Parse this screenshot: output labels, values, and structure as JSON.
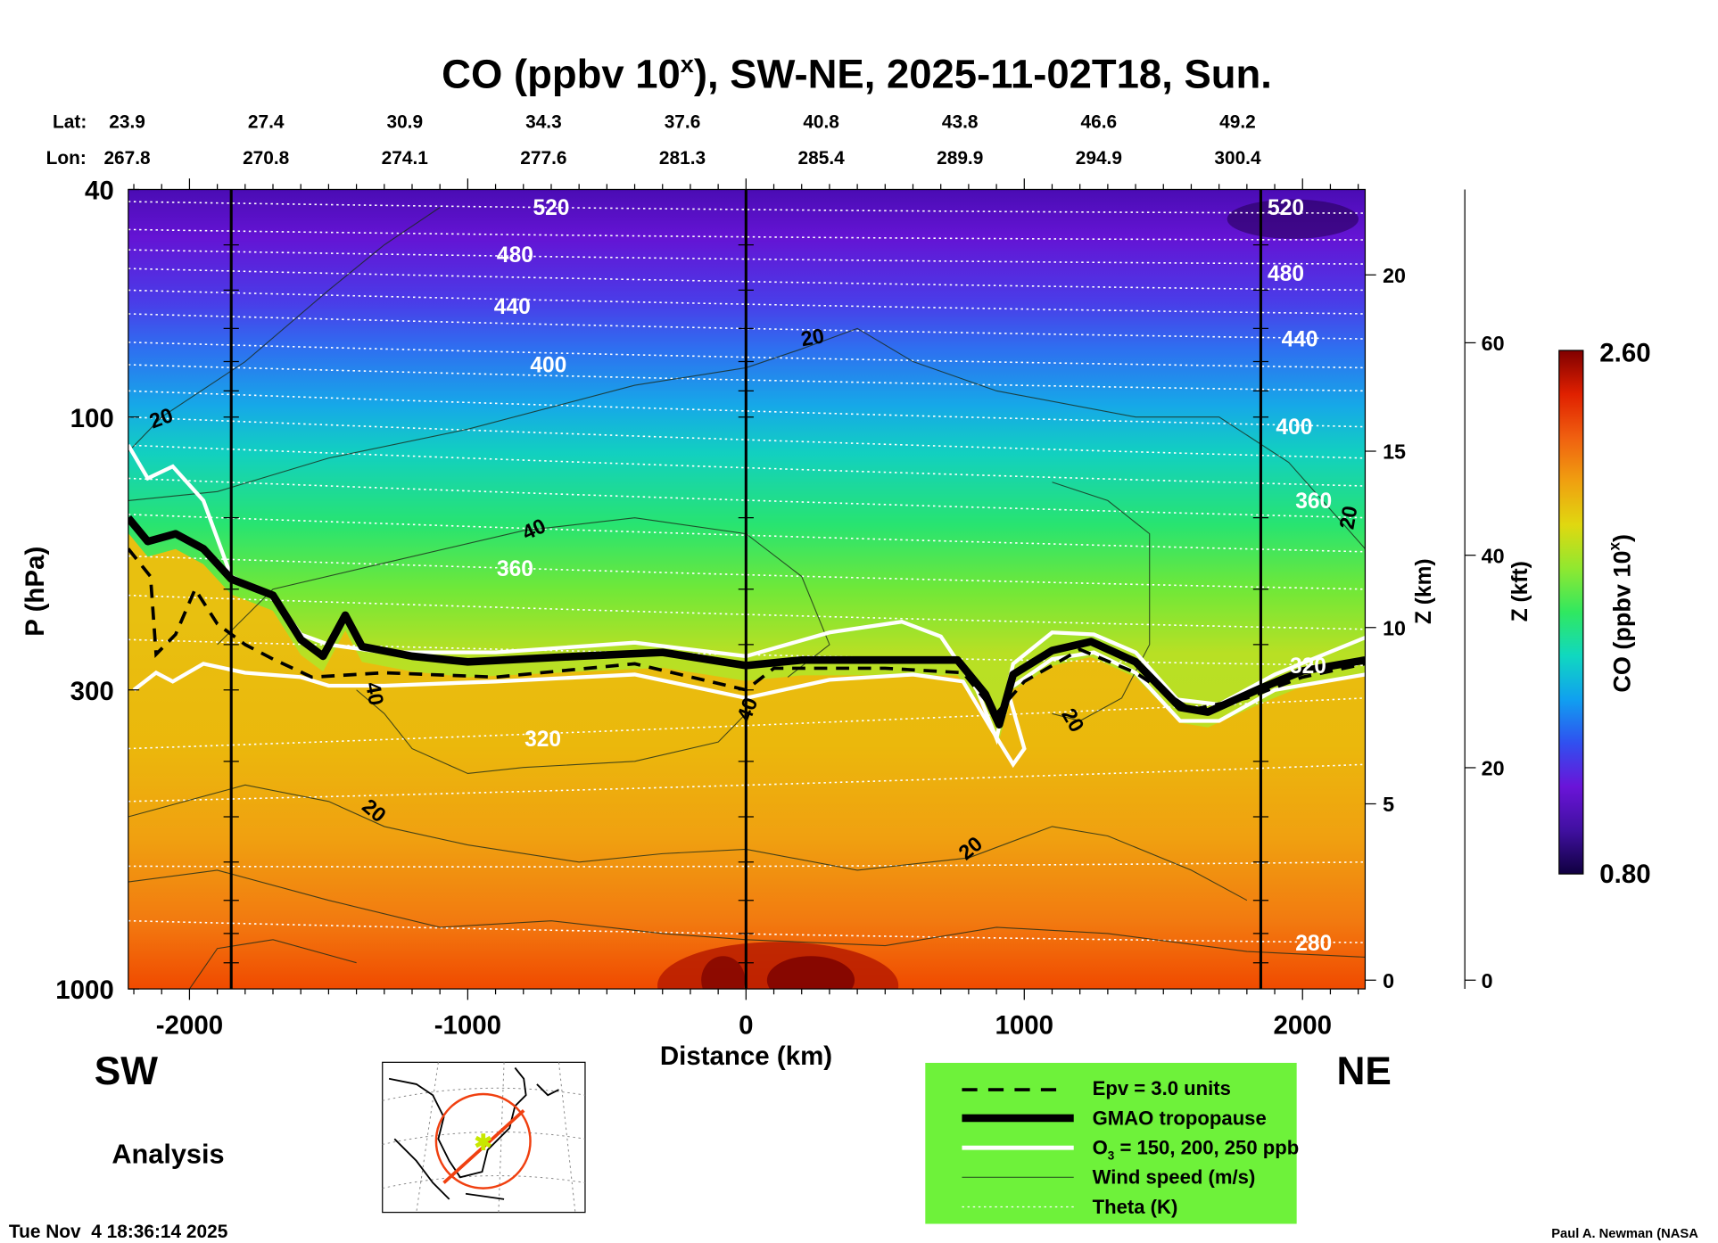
{
  "chart_data": {
    "type": "heatmap",
    "title": "CO (ppbv 10",
    "title_sup": "x",
    "title_rest": "), SW-NE, 2025-11-02T18, Sun.",
    "xlabel": "Distance (km)",
    "ylabel": "P (hPa)",
    "y2label": "Z (km)",
    "y3label": "Z (kft)",
    "xlim": [
      -2220,
      2225
    ],
    "ylim": [
      1000,
      40
    ],
    "yscale": "log",
    "x_ticks": [
      -2000,
      -1000,
      0,
      1000,
      2000
    ],
    "x_tick_labels": [
      "-2000",
      "-1000",
      "0",
      "1000",
      "2000"
    ],
    "y_ticks": [
      40,
      100,
      300,
      1000
    ],
    "y_tick_labels": [
      "40",
      "100",
      "300",
      "1000"
    ],
    "zkm_ticks": [
      0,
      5,
      10,
      15,
      20
    ],
    "zkm_labels": [
      "0",
      "5",
      "10",
      "15",
      "20"
    ],
    "zkft_ticks": [
      0,
      20,
      40,
      60
    ],
    "zkft_labels": [
      "0",
      "20",
      "40",
      "60"
    ],
    "vertical_markers_km": [
      -1850,
      0,
      1850
    ],
    "lat_label": "Lat:",
    "lon_label": "Lon:",
    "lat": [
      "23.9",
      "27.4",
      "30.9",
      "34.3",
      "37.6",
      "40.8",
      "43.8",
      "46.6",
      "49.2"
    ],
    "lon": [
      "267.8",
      "270.8",
      "274.1",
      "277.6",
      "281.3",
      "285.4",
      "289.9",
      "294.9",
      "300.4"
    ],
    "colorbar": {
      "label": "CO (ppbv 10",
      "label_sup": "x",
      "label_end": ")",
      "min": 0.8,
      "max": 2.6,
      "min_label": "0.80",
      "max_label": "2.60",
      "colors": [
        "#100040",
        "#4010a0",
        "#6a14d8",
        "#3050f0",
        "#10a0f0",
        "#10d8c0",
        "#30e860",
        "#90e830",
        "#e0d810",
        "#f0a010",
        "#f06010",
        "#e02000",
        "#800000"
      ]
    },
    "tropopause": [
      [
        -2220,
        150
      ],
      [
        -2150,
        165
      ],
      [
        -2050,
        160
      ],
      [
        -1950,
        170
      ],
      [
        -1850,
        192
      ],
      [
        -1700,
        205
      ],
      [
        -1600,
        245
      ],
      [
        -1520,
        262
      ],
      [
        -1440,
        222
      ],
      [
        -1380,
        252
      ],
      [
        -1200,
        262
      ],
      [
        -1000,
        268
      ],
      [
        -600,
        262
      ],
      [
        -300,
        258
      ],
      [
        0,
        272
      ],
      [
        200,
        266
      ],
      [
        500,
        266
      ],
      [
        760,
        266
      ],
      [
        860,
        305
      ],
      [
        910,
        345
      ],
      [
        960,
        282
      ],
      [
        1100,
        256
      ],
      [
        1240,
        247
      ],
      [
        1400,
        268
      ],
      [
        1560,
        322
      ],
      [
        1660,
        328
      ],
      [
        1850,
        298
      ],
      [
        2000,
        278
      ],
      [
        2225,
        266
      ]
    ],
    "epv": [
      [
        -2220,
        170
      ],
      [
        -2140,
        190
      ],
      [
        -2120,
        260
      ],
      [
        -2050,
        240
      ],
      [
        -1980,
        200
      ],
      [
        -1900,
        230
      ],
      [
        -1800,
        250
      ],
      [
        -1700,
        265
      ],
      [
        -1560,
        285
      ],
      [
        -1300,
        280
      ],
      [
        -900,
        285
      ],
      [
        -400,
        270
      ],
      [
        0,
        300
      ],
      [
        100,
        275
      ],
      [
        500,
        275
      ],
      [
        780,
        280
      ],
      [
        900,
        330
      ],
      [
        1000,
        290
      ],
      [
        1200,
        255
      ],
      [
        1400,
        280
      ],
      [
        1600,
        325
      ],
      [
        1800,
        310
      ],
      [
        2000,
        285
      ],
      [
        2225,
        270
      ]
    ],
    "o3_upper": [
      [
        -2220,
        112
      ],
      [
        -2150,
        128
      ],
      [
        -2060,
        122
      ],
      [
        -1950,
        140
      ],
      [
        -1850,
        190
      ],
      [
        -1700,
        205
      ],
      [
        -1600,
        240
      ],
      [
        -1500,
        250
      ],
      [
        -1300,
        258
      ],
      [
        -900,
        258
      ],
      [
        -400,
        248
      ],
      [
        0,
        262
      ],
      [
        300,
        238
      ],
      [
        560,
        228
      ],
      [
        700,
        242
      ],
      [
        830,
        300
      ],
      [
        900,
        365
      ],
      [
        960,
        270
      ],
      [
        1100,
        238
      ],
      [
        1250,
        240
      ],
      [
        1400,
        258
      ],
      [
        1550,
        312
      ],
      [
        1700,
        318
      ],
      [
        1900,
        282
      ],
      [
        2225,
        243
      ]
    ],
    "o3_lower": [
      [
        -2200,
        300
      ],
      [
        -2120,
        280
      ],
      [
        -2060,
        290
      ],
      [
        -1950,
        270
      ],
      [
        -1800,
        280
      ],
      [
        -1600,
        285
      ],
      [
        -1500,
        295
      ],
      [
        -1300,
        295
      ],
      [
        -900,
        290
      ],
      [
        -400,
        282
      ],
      [
        0,
        310
      ],
      [
        300,
        288
      ],
      [
        600,
        282
      ],
      [
        780,
        290
      ],
      [
        880,
        350
      ],
      [
        960,
        405
      ],
      [
        1000,
        380
      ],
      [
        940,
        300
      ],
      [
        1100,
        265
      ],
      [
        1250,
        258
      ],
      [
        1400,
        280
      ],
      [
        1560,
        340
      ],
      [
        1700,
        340
      ],
      [
        1900,
        300
      ],
      [
        2225,
        282
      ]
    ],
    "theta_labels": [
      {
        "label": "520",
        "x": -700,
        "p": 43
      },
      {
        "label": "480",
        "x": -830,
        "p": 52
      },
      {
        "label": "440",
        "x": -840,
        "p": 64
      },
      {
        "label": "400",
        "x": -710,
        "p": 81
      },
      {
        "label": "360",
        "x": -830,
        "p": 184
      },
      {
        "label": "320",
        "x": -730,
        "p": 365
      },
      {
        "label": "520",
        "x": 1940,
        "p": 43
      },
      {
        "label": "480",
        "x": 1940,
        "p": 56
      },
      {
        "label": "440",
        "x": 1990,
        "p": 73
      },
      {
        "label": "400",
        "x": 1970,
        "p": 104
      },
      {
        "label": "360",
        "x": 2040,
        "p": 140
      },
      {
        "label": "320",
        "x": 2020,
        "p": 272
      },
      {
        "label": "280",
        "x": 2040,
        "p": 830
      }
    ],
    "theta_lines": [
      [
        42,
        44
      ],
      [
        47,
        49
      ],
      [
        51,
        54
      ],
      [
        55,
        60
      ],
      [
        60,
        66
      ],
      [
        66,
        73
      ],
      [
        74,
        82
      ],
      [
        81,
        90
      ],
      [
        90,
        104
      ],
      [
        100,
        118
      ],
      [
        112,
        132
      ],
      [
        128,
        150
      ],
      [
        148,
        172
      ],
      [
        175,
        200
      ],
      [
        205,
        235
      ],
      [
        245,
        272
      ],
      [
        380,
        310
      ],
      [
        470,
        405
      ],
      [
        610,
        600
      ],
      [
        760,
        830
      ]
    ],
    "wind_labels": [
      {
        "label": "20",
        "x": -2100,
        "p": 101,
        "rot": -20
      },
      {
        "label": "20",
        "x": 240,
        "p": 73,
        "rot": -10
      },
      {
        "label": "40",
        "x": -760,
        "p": 158,
        "rot": -25
      },
      {
        "label": "40",
        "x": -1340,
        "p": 305,
        "rot": 80
      },
      {
        "label": "40",
        "x": 10,
        "p": 325,
        "rot": -70
      },
      {
        "label": "20",
        "x": -1340,
        "p": 490,
        "rot": 40
      },
      {
        "label": "20",
        "x": 810,
        "p": 570,
        "rot": -40
      },
      {
        "label": "20",
        "x": 1170,
        "p": 340,
        "rot": 60
      },
      {
        "label": "20",
        "x": 2170,
        "p": 150,
        "rot": -80
      }
    ],
    "wind_lines": [
      [
        [
          -2220,
          115
        ],
        [
          -2100,
          100
        ],
        [
          -1800,
          80
        ],
        [
          -1500,
          60
        ],
        [
          -1300,
          50
        ],
        [
          -1100,
          43
        ]
      ],
      [
        [
          -2220,
          140
        ],
        [
          -1900,
          135
        ],
        [
          -1500,
          118
        ],
        [
          -1000,
          105
        ],
        [
          -400,
          88
        ],
        [
          0,
          82
        ],
        [
          200,
          76
        ],
        [
          400,
          70
        ],
        [
          600,
          80
        ],
        [
          900,
          90
        ],
        [
          1400,
          100
        ],
        [
          1700,
          100
        ],
        [
          1950,
          120
        ],
        [
          2225,
          170
        ]
      ],
      [
        [
          -1900,
          250
        ],
        [
          -1700,
          200
        ],
        [
          -1300,
          180
        ],
        [
          -800,
          158
        ],
        [
          -400,
          150
        ],
        [
          0,
          160
        ],
        [
          200,
          190
        ],
        [
          300,
          250
        ],
        [
          150,
          285
        ]
      ],
      [
        [
          -1400,
          300
        ],
        [
          -1300,
          330
        ],
        [
          -1200,
          380
        ],
        [
          -1000,
          420
        ],
        [
          -800,
          410
        ],
        [
          -400,
          400
        ],
        [
          -100,
          370
        ],
        [
          0,
          330
        ]
      ],
      [
        [
          -2220,
          500
        ],
        [
          -1800,
          440
        ],
        [
          -1500,
          470
        ],
        [
          -1300,
          520
        ],
        [
          -1000,
          560
        ],
        [
          -600,
          600
        ],
        [
          -300,
          580
        ],
        [
          0,
          570
        ],
        [
          400,
          620
        ],
        [
          800,
          590
        ],
        [
          1100,
          520
        ],
        [
          1300,
          540
        ],
        [
          1600,
          620
        ],
        [
          1800,
          700
        ]
      ],
      [
        [
          -2220,
          650
        ],
        [
          -1900,
          620
        ],
        [
          -1500,
          700
        ],
        [
          -1100,
          780
        ],
        [
          -700,
          760
        ],
        [
          -300,
          800
        ],
        [
          0,
          820
        ],
        [
          500,
          840
        ],
        [
          900,
          780
        ],
        [
          1300,
          800
        ],
        [
          1800,
          860
        ],
        [
          2225,
          880
        ]
      ],
      [
        [
          1100,
          130
        ],
        [
          1300,
          140
        ],
        [
          1450,
          160
        ],
        [
          1450,
          250
        ],
        [
          1350,
          310
        ],
        [
          1200,
          340
        ],
        [
          1100,
          330
        ]
      ],
      [
        [
          -2000,
          1000
        ],
        [
          -1900,
          850
        ],
        [
          -1700,
          820
        ],
        [
          -1400,
          900
        ]
      ]
    ]
  },
  "labels": {
    "sw": "SW",
    "ne": "NE",
    "analysis": "Analysis",
    "timestamp": "Tue Nov  4 18:36:14 2025",
    "credit": "Paul A. Newman (NASA"
  },
  "legend": {
    "items": [
      {
        "label": "Epv = 3.0 units"
      },
      {
        "label": "GMAO tropopause"
      },
      {
        "label_pre": "O",
        "label_sub": "3",
        "label": " = 150, 200, 250 ppb"
      },
      {
        "label": "Wind speed (m/s)"
      },
      {
        "label": "Theta (K)"
      }
    ],
    "bg_color": "#6ef23a"
  }
}
